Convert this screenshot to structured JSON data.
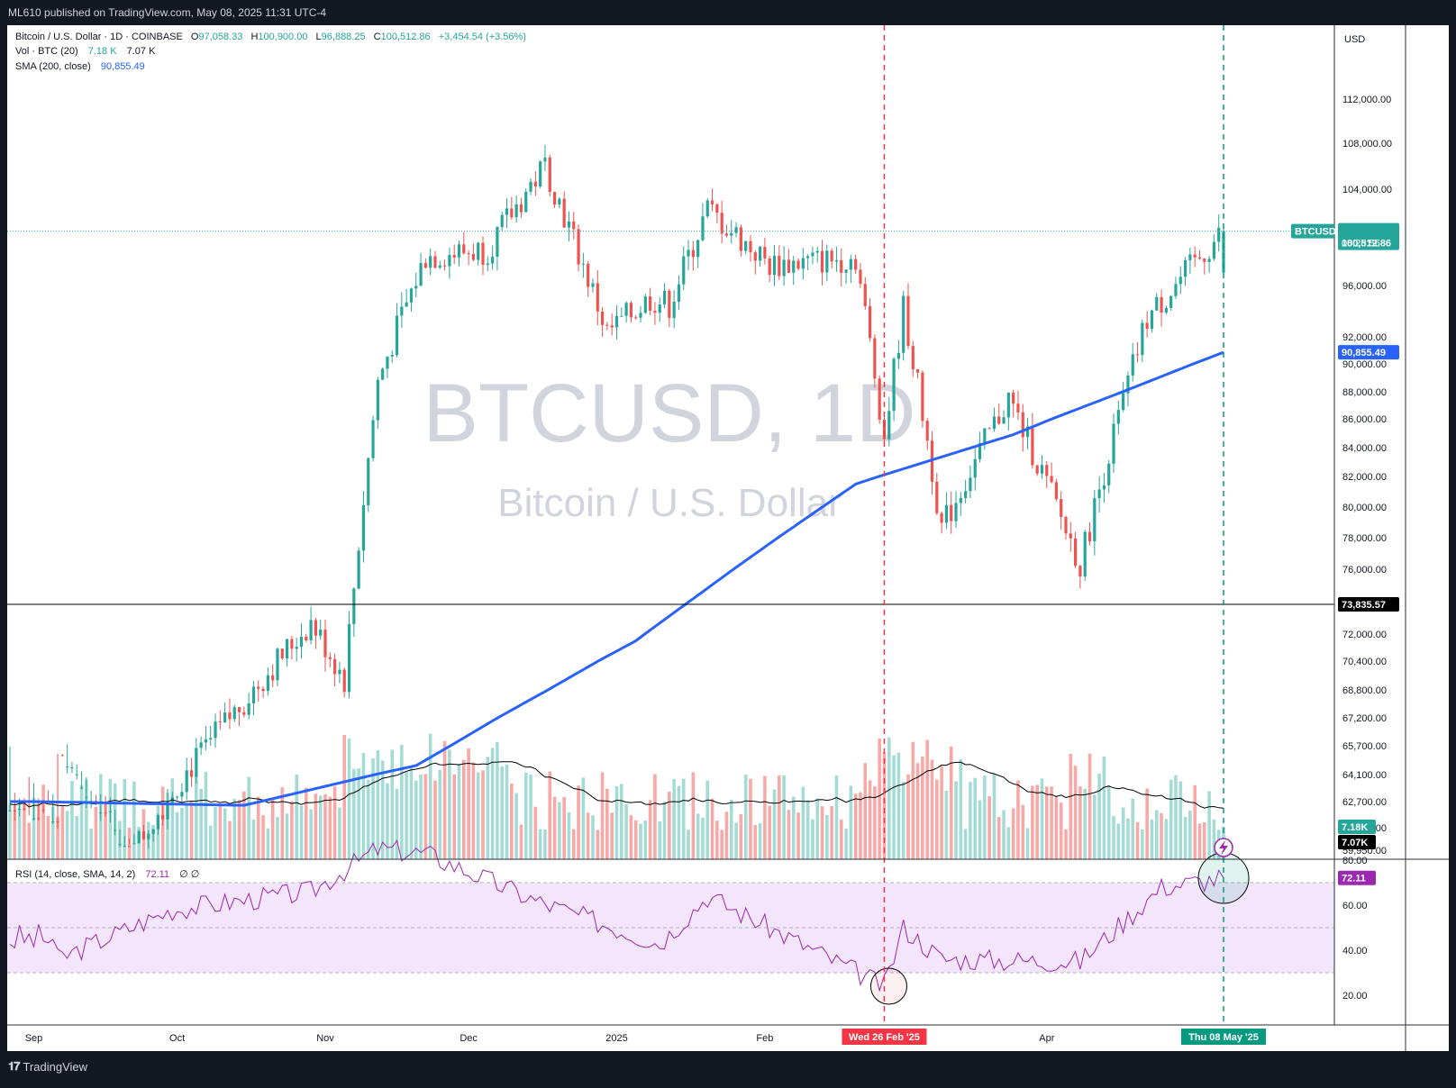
{
  "header": {
    "publisher_line": "ML610 published on TradingView.com, May 08, 2025 11:31 UTC-4"
  },
  "footer": {
    "brand": "TradingView"
  },
  "legend": {
    "symbol": "Bitcoin / U.S. Dollar · 1D · COINBASE",
    "o_label": "O",
    "o": "97,058.33",
    "h_label": "H",
    "h": "100,900.00",
    "l_label": "L",
    "l": "96,888.25",
    "c_label": "C",
    "c": "100,512.86",
    "change": "+3,454.54 (+3.56%)",
    "vol_label": "Vol · BTC (20)",
    "vol1": "7.18 K",
    "vol2": "7.07 K",
    "sma_label": "SMA (200, close)",
    "sma": "90,855.49",
    "rsi_label": "RSI (14, close, SMA, 14, 2)",
    "rsi": "72.11",
    "rsi_extra": "∅ ∅"
  },
  "watermark": {
    "symbol": "BTCUSD, 1D",
    "name": "Bitcoin / U.S. Dollar"
  },
  "currency": "USD",
  "price_axis": [
    "112,000.00",
    "108,000.00",
    "104,000.00",
    "96,000.00",
    "92,000.00",
    "90,000.00",
    "88,000.00",
    "86,000.00",
    "84,000.00",
    "82,000.00",
    "80,000.00",
    "78,000.00",
    "76,000.00",
    "72,000.00",
    "70,400.00",
    "68,800.00",
    "67,200.00",
    "65,700.00",
    "64,100.00",
    "62,700.00",
    "61,300.00",
    "59,950.00"
  ],
  "price_tags": {
    "btc_label": "BTCUSD",
    "last_price": "100,512.86",
    "countdown": "08:28:56",
    "sma_value": "90,855.49",
    "hline_value": "73,835.57",
    "vol_a": "7.18K",
    "vol_b": "7.07K"
  },
  "rsi_axis": [
    "80.00",
    "60.00",
    "40.00",
    "20.00"
  ],
  "rsi_tag": "72.11",
  "time_axis": [
    "Sep",
    "Oct",
    "Nov",
    "Dec",
    "2025",
    "Feb",
    "Apr"
  ],
  "time_markers": [
    "Wed 26 Feb '25",
    "Thu 08 May '25"
  ],
  "colors": {
    "up": "#26a69a",
    "down": "#ef5350",
    "sma": "#2962ff",
    "rsi": "#9c27b0",
    "rsi_band": "#f3e5fb",
    "marker_red": "#f23645",
    "marker_green": "#089981",
    "hline": "#000000",
    "volma": "#000000"
  },
  "chart_data": {
    "type": "candlestick",
    "symbol": "BTCUSD",
    "timeframe": "1D",
    "date_range": [
      "2024-08-27",
      "2025-05-08"
    ],
    "price_scale_ylim": [
      59950,
      114000
    ],
    "last_bar": {
      "date": "2025-05-08",
      "open": 97058.33,
      "high": 100900.0,
      "low": 96888.25,
      "close": 100512.86,
      "change": 3454.54,
      "change_pct": 3.56
    },
    "horizontal_line": 73835.57,
    "close_keypoints": [
      {
        "date": "2024-09-06",
        "close": 53900
      },
      {
        "date": "2024-09-30",
        "close": 63300
      },
      {
        "date": "2024-10-29",
        "close": 72700
      },
      {
        "date": "2024-11-05",
        "close": 69400
      },
      {
        "date": "2024-11-12",
        "close": 88700
      },
      {
        "date": "2024-11-22",
        "close": 98400
      },
      {
        "date": "2024-12-05",
        "close": 99000
      },
      {
        "date": "2024-12-17",
        "close": 106100
      },
      {
        "date": "2024-12-30",
        "close": 92300
      },
      {
        "date": "2025-01-08",
        "close": 95000
      },
      {
        "date": "2025-01-12",
        "close": 94500
      },
      {
        "date": "2025-01-20",
        "close": 102300
      },
      {
        "date": "2025-02-02",
        "close": 97700
      },
      {
        "date": "2025-02-20",
        "close": 98300
      },
      {
        "date": "2025-02-26",
        "close": 84700
      },
      {
        "date": "2025-03-02",
        "close": 94200
      },
      {
        "date": "2025-03-10",
        "close": 78600
      },
      {
        "date": "2025-03-24",
        "close": 87500
      },
      {
        "date": "2025-04-08",
        "close": 76300
      },
      {
        "date": "2025-04-22",
        "close": 93400
      },
      {
        "date": "2025-05-08",
        "close": 100512.86
      }
    ],
    "sma200_keypoints": [
      {
        "date": "2024-09-01",
        "value": 62700
      },
      {
        "date": "2024-10-15",
        "value": 62500
      },
      {
        "date": "2024-11-20",
        "value": 64600
      },
      {
        "date": "2025-01-05",
        "value": 71600
      },
      {
        "date": "2025-02-20",
        "value": 81500
      },
      {
        "date": "2025-03-25",
        "value": 84900
      },
      {
        "date": "2025-05-08",
        "value": 90855.49
      }
    ],
    "volume_last": [
      7.18,
      7.07
    ],
    "rsi": {
      "period": 14,
      "last": 72.11,
      "overbought": 70,
      "oversold": 30,
      "keypoints": [
        {
          "date": "2024-09-06",
          "value": 36
        },
        {
          "date": "2024-09-30",
          "value": 58
        },
        {
          "date": "2024-10-29",
          "value": 66
        },
        {
          "date": "2024-11-12",
          "value": 85
        },
        {
          "date": "2024-11-22",
          "value": 83
        },
        {
          "date": "2024-12-15",
          "value": 62
        },
        {
          "date": "2025-01-10",
          "value": 43
        },
        {
          "date": "2025-01-20",
          "value": 64
        },
        {
          "date": "2025-02-26",
          "value": 24
        },
        {
          "date": "2025-03-02",
          "value": 50
        },
        {
          "date": "2025-03-10",
          "value": 36
        },
        {
          "date": "2025-04-08",
          "value": 35
        },
        {
          "date": "2025-04-25",
          "value": 68
        },
        {
          "date": "2025-05-08",
          "value": 72.11
        }
      ]
    },
    "markers": [
      {
        "date": "2025-02-26"
      },
      {
        "date": "2025-05-08"
      }
    ]
  }
}
